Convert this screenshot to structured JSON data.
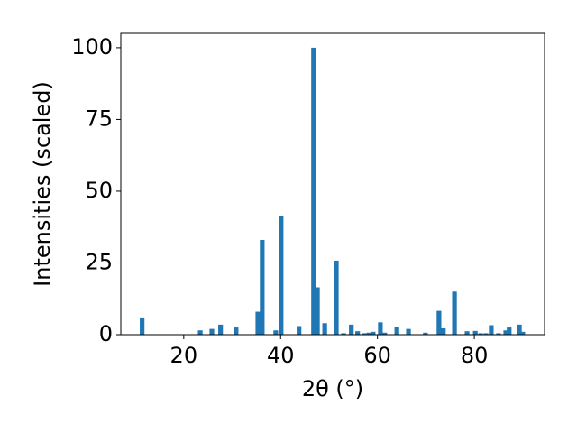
{
  "chart_data": {
    "type": "bar",
    "x_label": "2θ (°)",
    "y_label": "Intensities (scaled)",
    "color": "#1f77b4",
    "x": [
      11.4,
      23.4,
      25.8,
      27.6,
      30.8,
      35.3,
      36.2,
      39.0,
      40.1,
      43.8,
      46.8,
      47.6,
      49.1,
      51.5,
      53.0,
      54.6,
      55.9,
      57.2,
      58.2,
      59.1,
      60.6,
      61.5,
      64.0,
      66.4,
      69.9,
      72.7,
      73.6,
      75.9,
      78.5,
      80.2,
      81.3,
      82.4,
      83.5,
      85.0,
      86.5,
      87.2,
      89.3,
      90.0
    ],
    "values": [
      6,
      1.5,
      2,
      3.5,
      2.5,
      8,
      33,
      1.5,
      41.5,
      3,
      100,
      16.5,
      4,
      25.8,
      0.5,
      3.5,
      1.2,
      0.5,
      0.7,
      1,
      4.3,
      0.7,
      2.8,
      2,
      0.7,
      8.3,
      2.2,
      15,
      1.2,
      1.3,
      0.5,
      0.5,
      3.3,
      0.5,
      1.5,
      2.5,
      3.5,
      1
    ],
    "xlim": [
      7,
      94.5
    ],
    "ylim": [
      0,
      105
    ],
    "xticks": [
      20,
      40,
      60,
      80
    ],
    "yticks": [
      0,
      25,
      50,
      75,
      100
    ]
  }
}
